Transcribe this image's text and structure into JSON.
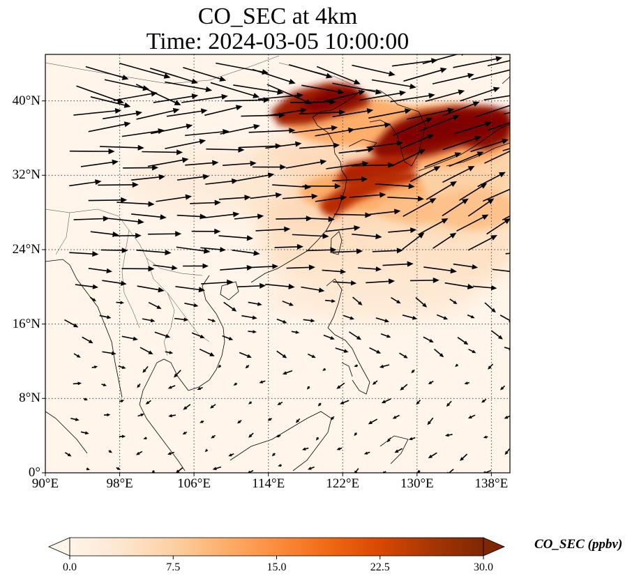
{
  "title_line1": "CO_SEC at 4km",
  "title_line2": "Time: 2024-03-05 10:00:00",
  "map": {
    "lon_range": [
      90,
      140
    ],
    "lat_range": [
      0,
      45
    ],
    "lat_ticks": [
      {
        "value": 40,
        "label": "40°N"
      },
      {
        "value": 32,
        "label": "32°N"
      },
      {
        "value": 24,
        "label": "24°N"
      },
      {
        "value": 16,
        "label": "16°N"
      },
      {
        "value": 8,
        "label": "8°N"
      },
      {
        "value": 0,
        "label": "0°"
      }
    ],
    "lon_ticks": [
      {
        "value": 90,
        "label": "90°E"
      },
      {
        "value": 98,
        "label": "98°E"
      },
      {
        "value": 106,
        "label": "106°E"
      },
      {
        "value": 114,
        "label": "114°E"
      },
      {
        "value": 122,
        "label": "122°E"
      },
      {
        "value": 130,
        "label": "130°E"
      },
      {
        "value": 138,
        "label": "138°E"
      }
    ],
    "plume_bands": [
      {
        "lon": [
          116,
          127
        ],
        "lat": [
          38,
          41.5
        ],
        "value": 30
      },
      {
        "lon": [
          125,
          140
        ],
        "lat": [
          33.5,
          39
        ],
        "value": 30
      },
      {
        "lon": [
          120,
          131
        ],
        "lat": [
          28.5,
          32.5
        ],
        "value": 28
      },
      {
        "lon": [
          118,
          140
        ],
        "lat": [
          25,
          37
        ],
        "value": 10
      },
      {
        "lon": [
          110,
          140
        ],
        "lat": [
          17,
          30
        ],
        "value": 4
      }
    ]
  },
  "colorbar": {
    "label": "CO_SEC (ppbv)",
    "min": 0,
    "max": 30,
    "ticks": [
      {
        "value": 0,
        "label": "0.0"
      },
      {
        "value": 7.5,
        "label": "7.5"
      },
      {
        "value": 15,
        "label": "15.0"
      },
      {
        "value": 22.5,
        "label": "22.5"
      },
      {
        "value": 30,
        "label": "30.0"
      }
    ],
    "colors": [
      "#fff5eb",
      "#fee6ce",
      "#fdd0a2",
      "#fdae6b",
      "#fd8d3c",
      "#f16913",
      "#d94801",
      "#a63603",
      "#7f2704"
    ]
  }
}
